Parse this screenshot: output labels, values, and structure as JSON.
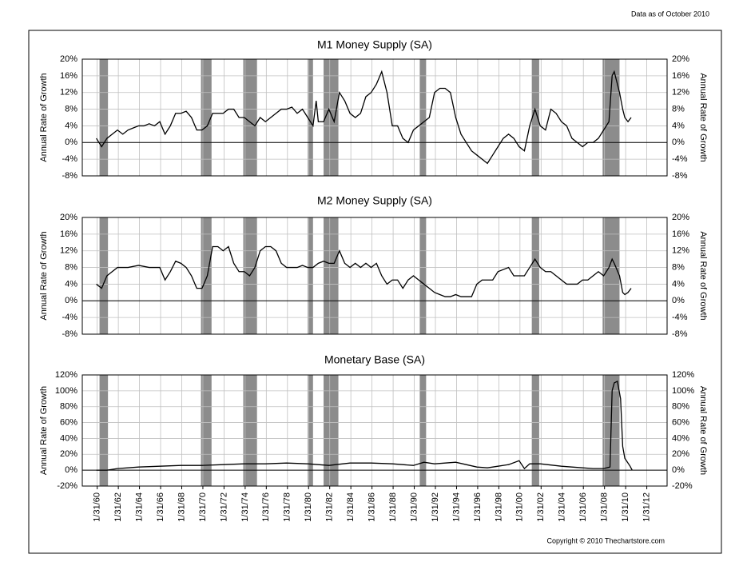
{
  "note": "Data as of October 2010",
  "copyright": "Copyright © 2010 Thechartstore.com",
  "chart_data": [
    {
      "type": "line",
      "title": "M1 Money Supply (SA)",
      "ylabel": "Annual Rate of Growth",
      "color": "#000000",
      "recession_color": "#8c8c8c",
      "grid": true,
      "xlim": [
        1958.67,
        2014
      ],
      "xticks": [
        1960.08,
        1962.08,
        1964.08,
        1966.08,
        1968.08,
        1970.08,
        1972.08,
        1974.08,
        1976.08,
        1978.08,
        1980.08,
        1982.08,
        1984.08,
        1986.08,
        1988.08,
        1990.08,
        1992.08,
        1994.08,
        1996.08,
        1998.08,
        2000.08,
        2002.08,
        2004.08,
        2006.08,
        2008.08,
        2010.08,
        2012.08
      ],
      "ylim": [
        -8,
        20
      ],
      "yticks": [
        {
          "value": -8,
          "label": "-8%"
        },
        {
          "value": -4,
          "label": "-4%"
        },
        {
          "value": 0,
          "label": "0%"
        },
        {
          "value": 4,
          "label": "4%"
        },
        {
          "value": 8,
          "label": "8%"
        },
        {
          "value": 12,
          "label": "12%"
        },
        {
          "value": 16,
          "label": "16%"
        },
        {
          "value": 20,
          "label": "20%"
        }
      ],
      "recessions": [
        {
          "start": 1960.3,
          "end": 1961.1
        },
        {
          "start": 1969.9,
          "end": 1970.9
        },
        {
          "start": 1973.9,
          "end": 1975.2
        },
        {
          "start": 1980.0,
          "end": 1980.5
        },
        {
          "start": 1981.5,
          "end": 1982.9
        },
        {
          "start": 1990.6,
          "end": 1991.2
        },
        {
          "start": 2001.2,
          "end": 2001.9
        },
        {
          "start": 2007.9,
          "end": 2009.5
        }
      ],
      "x": [
        1960,
        1960.5,
        1961,
        1961.5,
        1962,
        1962.5,
        1963,
        1963.5,
        1964,
        1964.5,
        1965,
        1965.5,
        1966,
        1966.5,
        1967,
        1967.5,
        1968,
        1968.5,
        1969,
        1969.5,
        1970,
        1970.5,
        1971,
        1971.5,
        1972,
        1972.5,
        1973,
        1973.5,
        1974,
        1974.5,
        1975,
        1975.5,
        1976,
        1976.5,
        1977,
        1977.5,
        1978,
        1978.5,
        1979,
        1979.5,
        1980,
        1980.5,
        1980.8,
        1981,
        1981.5,
        1982,
        1982.5,
        1983,
        1983.5,
        1984,
        1984.5,
        1985,
        1985.5,
        1986,
        1986.5,
        1987,
        1987.5,
        1988,
        1988.5,
        1989,
        1989.5,
        1990,
        1990.5,
        1991,
        1991.5,
        1992,
        1992.5,
        1993,
        1993.5,
        1994,
        1994.5,
        1995,
        1995.5,
        1996,
        1996.5,
        1997,
        1997.5,
        1998,
        1998.5,
        1999,
        1999.5,
        2000,
        2000.5,
        2001,
        2001.5,
        2002,
        2002.5,
        2003,
        2003.5,
        2004,
        2004.5,
        2005,
        2005.5,
        2006,
        2006.5,
        2007,
        2007.5,
        2008,
        2008.5,
        2008.8,
        2009,
        2009.5,
        2009.8,
        2010,
        2010.3,
        2010.6
      ],
      "values": [
        1,
        -1,
        1,
        2,
        3,
        2,
        3,
        3.5,
        4,
        4,
        4.5,
        4,
        5,
        2,
        4,
        7,
        7,
        7.5,
        6,
        3,
        3,
        4,
        7,
        7,
        7,
        8,
        8,
        6,
        6,
        5,
        4,
        6,
        5,
        6,
        7,
        8,
        8,
        8.5,
        7,
        8,
        6,
        4,
        10,
        5,
        5,
        8,
        5,
        12,
        10,
        7,
        6,
        7,
        11,
        12,
        14,
        17,
        12,
        4,
        4,
        1,
        0,
        3,
        4,
        5,
        6,
        12,
        13,
        13,
        12,
        6,
        2,
        0,
        -2,
        -3,
        -4,
        -5,
        -3,
        -1,
        1,
        2,
        1,
        -1,
        -2,
        4,
        8,
        4,
        3,
        8,
        7,
        5,
        4,
        1,
        0,
        -1,
        0,
        0,
        1,
        3,
        5,
        16,
        17,
        12,
        8,
        6,
        5,
        6
      ]
    },
    {
      "type": "line",
      "title": "M2 Money Supply (SA)",
      "ylabel": "Annual Rate of Growth",
      "color": "#000000",
      "recession_color": "#8c8c8c",
      "grid": true,
      "xlim": [
        1958.67,
        2014
      ],
      "xticks": [
        1960.08,
        1962.08,
        1964.08,
        1966.08,
        1968.08,
        1970.08,
        1972.08,
        1974.08,
        1976.08,
        1978.08,
        1980.08,
        1982.08,
        1984.08,
        1986.08,
        1988.08,
        1990.08,
        1992.08,
        1994.08,
        1996.08,
        1998.08,
        2000.08,
        2002.08,
        2004.08,
        2006.08,
        2008.08,
        2010.08,
        2012.08
      ],
      "ylim": [
        -8,
        20
      ],
      "yticks": [
        {
          "value": -8,
          "label": "-8%"
        },
        {
          "value": -4,
          "label": "-4%"
        },
        {
          "value": 0,
          "label": "0%"
        },
        {
          "value": 4,
          "label": "4%"
        },
        {
          "value": 8,
          "label": "8%"
        },
        {
          "value": 12,
          "label": "12%"
        },
        {
          "value": 16,
          "label": "16%"
        },
        {
          "value": 20,
          "label": "20%"
        }
      ],
      "recessions": [
        {
          "start": 1960.3,
          "end": 1961.1
        },
        {
          "start": 1969.9,
          "end": 1970.9
        },
        {
          "start": 1973.9,
          "end": 1975.2
        },
        {
          "start": 1980.0,
          "end": 1980.5
        },
        {
          "start": 1981.5,
          "end": 1982.9
        },
        {
          "start": 1990.6,
          "end": 1991.2
        },
        {
          "start": 2001.2,
          "end": 2001.9
        },
        {
          "start": 2007.9,
          "end": 2009.5
        }
      ],
      "x": [
        1960,
        1960.5,
        1961,
        1961.5,
        1962,
        1963,
        1964,
        1965,
        1966,
        1966.5,
        1967,
        1967.5,
        1968,
        1968.5,
        1969,
        1969.5,
        1970,
        1970.5,
        1971,
        1971.5,
        1972,
        1972.5,
        1973,
        1973.5,
        1974,
        1974.5,
        1975,
        1975.5,
        1976,
        1976.5,
        1977,
        1977.5,
        1978,
        1978.5,
        1979,
        1979.5,
        1980,
        1980.5,
        1981,
        1981.5,
        1982,
        1982.5,
        1983,
        1983.5,
        1984,
        1984.5,
        1985,
        1985.5,
        1986,
        1986.5,
        1987,
        1987.5,
        1988,
        1988.5,
        1989,
        1989.5,
        1990,
        1990.5,
        1991,
        1991.5,
        1992,
        1992.5,
        1993,
        1993.5,
        1994,
        1994.5,
        1995,
        1995.5,
        1996,
        1996.5,
        1997,
        1997.5,
        1998,
        1998.5,
        1999,
        1999.5,
        2000,
        2000.5,
        2001,
        2001.5,
        2002,
        2002.5,
        2003,
        2003.5,
        2004,
        2004.5,
        2005,
        2005.5,
        2006,
        2006.5,
        2007,
        2007.5,
        2008,
        2008.5,
        2008.8,
        2009,
        2009.5,
        2009.8,
        2010,
        2010.3,
        2010.6
      ],
      "values": [
        4,
        3,
        6,
        7,
        8,
        8,
        8.5,
        8,
        8,
        5,
        7,
        9.5,
        9,
        8,
        6,
        3,
        3,
        6,
        13,
        13,
        12,
        13,
        9,
        7,
        7,
        6,
        8,
        12,
        13,
        13,
        12,
        9,
        8,
        8,
        8,
        8.5,
        8,
        8,
        9,
        9.5,
        9,
        9,
        12,
        9,
        8,
        9,
        8,
        9,
        8,
        9,
        6,
        4,
        5,
        5,
        3,
        5,
        6,
        5,
        4,
        3,
        2,
        1.5,
        1,
        1,
        1.5,
        1,
        1,
        1,
        4,
        5,
        5,
        5,
        7,
        7.5,
        8,
        6,
        6,
        6,
        8,
        10,
        8,
        7,
        7,
        6,
        5,
        4,
        4,
        4,
        5,
        5,
        6,
        7,
        6,
        8,
        10,
        9,
        6,
        2,
        1.5,
        2,
        3
      ]
    },
    {
      "type": "line",
      "title": "Monetary Base (SA)",
      "ylabel": "Annual Rate of Growth",
      "color": "#000000",
      "recession_color": "#8c8c8c",
      "grid": true,
      "xlim": [
        1958.67,
        2014
      ],
      "xticks": [
        {
          "value": 1960.08,
          "label": "1/31/60"
        },
        {
          "value": 1962.08,
          "label": "1/31/62"
        },
        {
          "value": 1964.08,
          "label": "1/31/64"
        },
        {
          "value": 1966.08,
          "label": "1/31/66"
        },
        {
          "value": 1968.08,
          "label": "1/31/68"
        },
        {
          "value": 1970.08,
          "label": "1/31/70"
        },
        {
          "value": 1972.08,
          "label": "1/31/72"
        },
        {
          "value": 1974.08,
          "label": "1/31/74"
        },
        {
          "value": 1976.08,
          "label": "1/31/76"
        },
        {
          "value": 1978.08,
          "label": "1/31/78"
        },
        {
          "value": 1980.08,
          "label": "1/31/80"
        },
        {
          "value": 1982.08,
          "label": "1/31/82"
        },
        {
          "value": 1984.08,
          "label": "1/31/84"
        },
        {
          "value": 1986.08,
          "label": "1/31/86"
        },
        {
          "value": 1988.08,
          "label": "1/31/88"
        },
        {
          "value": 1990.08,
          "label": "1/31/90"
        },
        {
          "value": 1992.08,
          "label": "1/31/92"
        },
        {
          "value": 1994.08,
          "label": "1/31/94"
        },
        {
          "value": 1996.08,
          "label": "1/31/96"
        },
        {
          "value": 1998.08,
          "label": "1/31/98"
        },
        {
          "value": 2000.08,
          "label": "1/31/00"
        },
        {
          "value": 2002.08,
          "label": "1/31/02"
        },
        {
          "value": 2004.08,
          "label": "1/31/04"
        },
        {
          "value": 2006.08,
          "label": "1/31/06"
        },
        {
          "value": 2008.08,
          "label": "1/31/08"
        },
        {
          "value": 2010.08,
          "label": "1/31/10"
        },
        {
          "value": 2012.08,
          "label": "1/31/12"
        }
      ],
      "ylim": [
        -20,
        120
      ],
      "yticks": [
        {
          "value": -20,
          "label": "-20%"
        },
        {
          "value": 0,
          "label": "0%"
        },
        {
          "value": 20,
          "label": "20%"
        },
        {
          "value": 40,
          "label": "40%"
        },
        {
          "value": 60,
          "label": "60%"
        },
        {
          "value": 80,
          "label": "80%"
        },
        {
          "value": 100,
          "label": "100%"
        },
        {
          "value": 120,
          "label": "120%"
        }
      ],
      "recessions": [
        {
          "start": 1960.3,
          "end": 1961.1
        },
        {
          "start": 1969.9,
          "end": 1970.9
        },
        {
          "start": 1973.9,
          "end": 1975.2
        },
        {
          "start": 1980.0,
          "end": 1980.5
        },
        {
          "start": 1981.5,
          "end": 1982.9
        },
        {
          "start": 1990.6,
          "end": 1991.2
        },
        {
          "start": 2001.2,
          "end": 2001.9
        },
        {
          "start": 2007.9,
          "end": 2009.5
        }
      ],
      "x": [
        1960,
        1961,
        1962,
        1963,
        1964,
        1966,
        1968,
        1970,
        1972,
        1974,
        1976,
        1978,
        1980,
        1982,
        1984,
        1986,
        1988,
        1990,
        1991,
        1992,
        1994,
        1996,
        1997,
        1998,
        1999,
        2000,
        2000.5,
        2001,
        2002,
        2004,
        2006,
        2007,
        2008,
        2008.6,
        2008.8,
        2009,
        2009.3,
        2009.6,
        2009.8,
        2010,
        2010.5,
        2010.7
      ],
      "values": [
        0,
        0,
        2,
        3,
        4,
        5,
        6,
        6,
        7,
        8,
        8,
        9,
        8,
        6,
        9,
        9,
        8,
        6,
        10,
        8,
        10,
        4,
        3,
        5,
        7,
        12,
        2,
        8,
        8,
        5,
        3,
        2,
        2,
        4,
        100,
        110,
        112,
        90,
        30,
        15,
        5,
        0
      ]
    }
  ]
}
